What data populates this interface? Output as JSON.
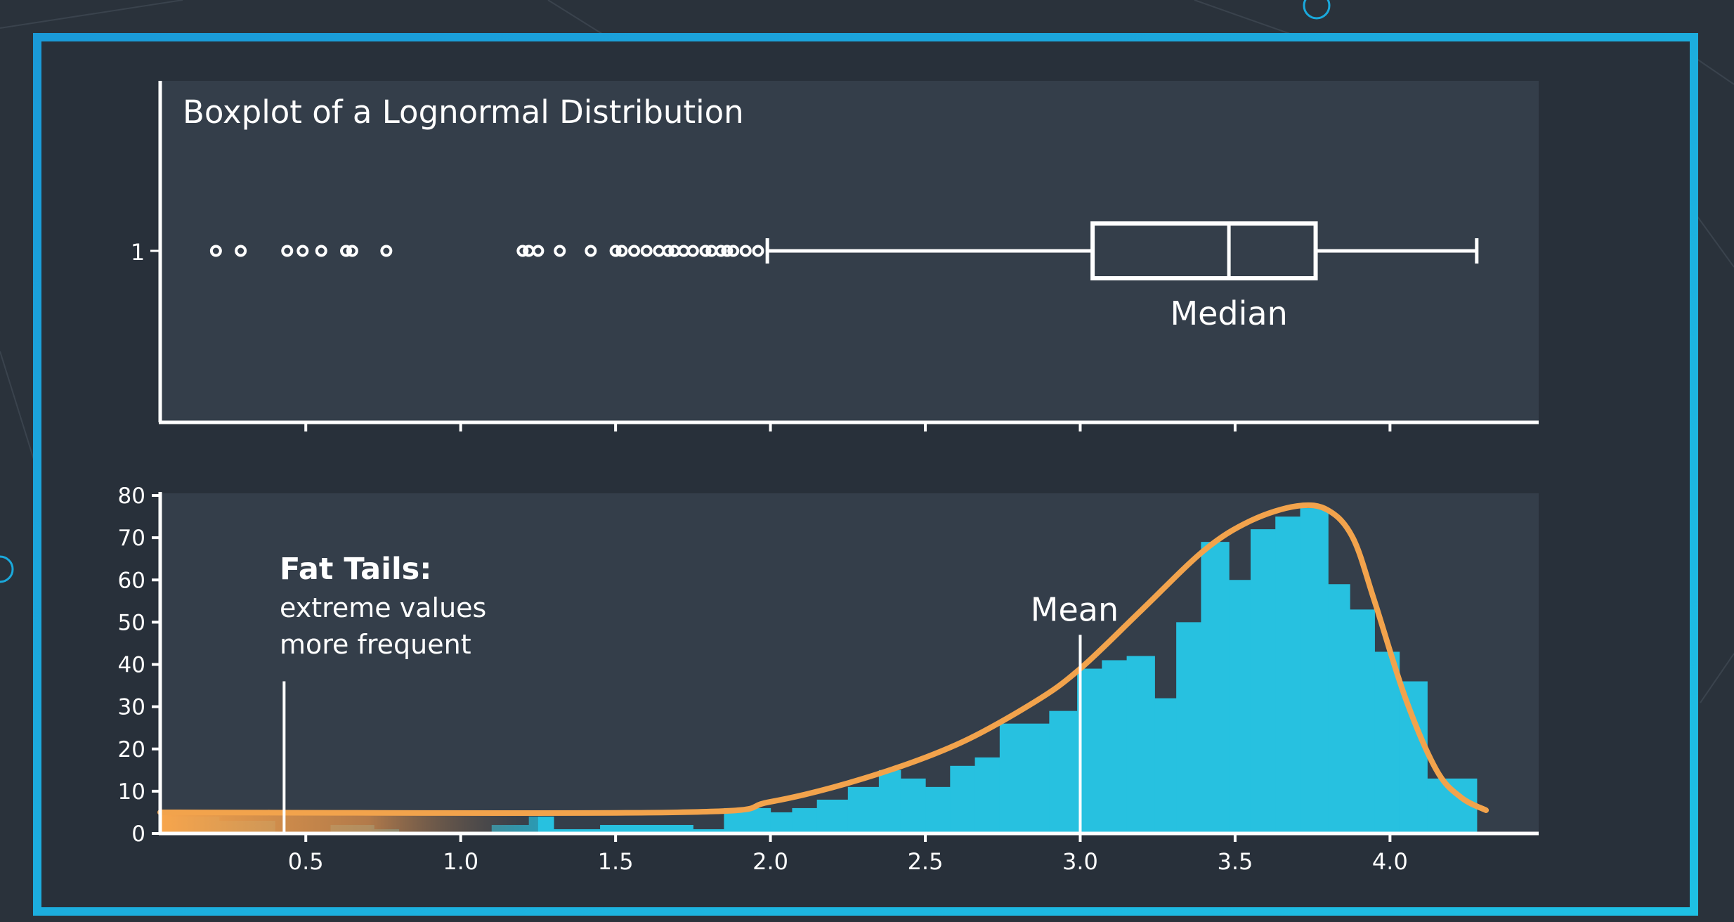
{
  "colors": {
    "background": "#2a323b",
    "frame": "#1aa9dc",
    "panel": "#343e4a",
    "inner": "#28303a",
    "axis": "#ffffff",
    "histogram_fill": "#27c1e0",
    "curve": "#f2a34c"
  },
  "chart_data": [
    {
      "type": "boxplot",
      "title": "Boxplot of a Lognormal Distribution",
      "y_tick_labels": [
        "1"
      ],
      "xlim": [
        0.03,
        4.48
      ],
      "box": {
        "whisker_low": 1.99,
        "q1": 3.04,
        "median": 3.48,
        "q3": 3.76,
        "whisker_high": 4.28
      },
      "outliers": [
        0.21,
        0.29,
        0.44,
        0.49,
        0.55,
        0.63,
        0.65,
        0.76,
        1.2,
        1.22,
        1.25,
        1.32,
        1.42,
        1.5,
        1.52,
        1.56,
        1.6,
        1.64,
        1.67,
        1.69,
        1.72,
        1.75,
        1.79,
        1.81,
        1.84,
        1.86,
        1.88,
        1.92,
        1.96
      ],
      "annotations": [
        {
          "text": "Median",
          "x": 3.48
        }
      ]
    },
    {
      "type": "histogram",
      "xlim": [
        0.03,
        4.48
      ],
      "ylim": [
        0,
        80
      ],
      "x_ticks": [
        0.5,
        1.0,
        1.5,
        2.0,
        2.5,
        3.0,
        3.5,
        4.0
      ],
      "x_tick_labels": [
        "0.5",
        "1.0",
        "1.5",
        "2.0",
        "2.5",
        "3.0",
        "3.5",
        "4.0"
      ],
      "y_ticks": [
        0,
        10,
        20,
        30,
        40,
        50,
        60,
        70,
        80
      ],
      "y_tick_labels": [
        "0",
        "10",
        "20",
        "30",
        "40",
        "50",
        "60",
        "70",
        "80"
      ],
      "bins": [
        {
          "x0": 0.03,
          "x1": 0.22,
          "count": 4
        },
        {
          "x0": 0.22,
          "x1": 0.4,
          "count": 3
        },
        {
          "x0": 0.4,
          "x1": 0.58,
          "count": 0
        },
        {
          "x0": 0.58,
          "x1": 0.72,
          "count": 2
        },
        {
          "x0": 0.72,
          "x1": 0.8,
          "count": 1
        },
        {
          "x0": 0.8,
          "x1": 1.1,
          "count": 0
        },
        {
          "x0": 1.1,
          "x1": 1.22,
          "count": 2
        },
        {
          "x0": 1.22,
          "x1": 1.3,
          "count": 4
        },
        {
          "x0": 1.3,
          "x1": 1.45,
          "count": 1
        },
        {
          "x0": 1.45,
          "x1": 1.75,
          "count": 2
        },
        {
          "x0": 1.75,
          "x1": 1.85,
          "count": 1
        },
        {
          "x0": 1.85,
          "x1": 2.0,
          "count": 6
        },
        {
          "x0": 2.0,
          "x1": 2.07,
          "count": 5
        },
        {
          "x0": 2.07,
          "x1": 2.15,
          "count": 6
        },
        {
          "x0": 2.15,
          "x1": 2.25,
          "count": 8
        },
        {
          "x0": 2.25,
          "x1": 2.35,
          "count": 11
        },
        {
          "x0": 2.35,
          "x1": 2.42,
          "count": 15
        },
        {
          "x0": 2.42,
          "x1": 2.5,
          "count": 13
        },
        {
          "x0": 2.5,
          "x1": 2.58,
          "count": 11
        },
        {
          "x0": 2.58,
          "x1": 2.66,
          "count": 16
        },
        {
          "x0": 2.66,
          "x1": 2.74,
          "count": 18
        },
        {
          "x0": 2.74,
          "x1": 2.9,
          "count": 26
        },
        {
          "x0": 2.9,
          "x1": 2.99,
          "count": 29
        },
        {
          "x0": 2.99,
          "x1": 3.07,
          "count": 39
        },
        {
          "x0": 3.07,
          "x1": 3.15,
          "count": 41
        },
        {
          "x0": 3.15,
          "x1": 3.24,
          "count": 42
        },
        {
          "x0": 3.24,
          "x1": 3.31,
          "count": 32
        },
        {
          "x0": 3.31,
          "x1": 3.39,
          "count": 50
        },
        {
          "x0": 3.39,
          "x1": 3.48,
          "count": 69
        },
        {
          "x0": 3.48,
          "x1": 3.55,
          "count": 60
        },
        {
          "x0": 3.55,
          "x1": 3.63,
          "count": 72
        },
        {
          "x0": 3.63,
          "x1": 3.71,
          "count": 75
        },
        {
          "x0": 3.71,
          "x1": 3.8,
          "count": 77
        },
        {
          "x0": 3.8,
          "x1": 3.87,
          "count": 59
        },
        {
          "x0": 3.87,
          "x1": 3.95,
          "count": 53
        },
        {
          "x0": 3.95,
          "x1": 4.03,
          "count": 43
        },
        {
          "x0": 4.03,
          "x1": 4.12,
          "count": 36
        },
        {
          "x0": 4.12,
          "x1": 4.28,
          "count": 13
        }
      ],
      "curve": [
        [
          0.03,
          5
        ],
        [
          1.7,
          5
        ],
        [
          2.0,
          7.5
        ],
        [
          2.3,
          13
        ],
        [
          2.6,
          21
        ],
        [
          2.85,
          31
        ],
        [
          3.0,
          39
        ],
        [
          3.2,
          53
        ],
        [
          3.4,
          67
        ],
        [
          3.55,
          74
        ],
        [
          3.7,
          77.5
        ],
        [
          3.8,
          76.5
        ],
        [
          3.88,
          70
        ],
        [
          3.95,
          55
        ],
        [
          4.05,
          32
        ],
        [
          4.15,
          15
        ],
        [
          4.23,
          8.5
        ],
        [
          4.31,
          5.5
        ]
      ],
      "mean": {
        "label": "Mean",
        "x": 3.0,
        "y_top": 47
      },
      "tail_marker": {
        "x": 0.43,
        "y_top": 36
      },
      "annotations": {
        "heading": "Fat Tails:",
        "line1": "extreme values",
        "line2": "more frequent"
      }
    }
  ]
}
